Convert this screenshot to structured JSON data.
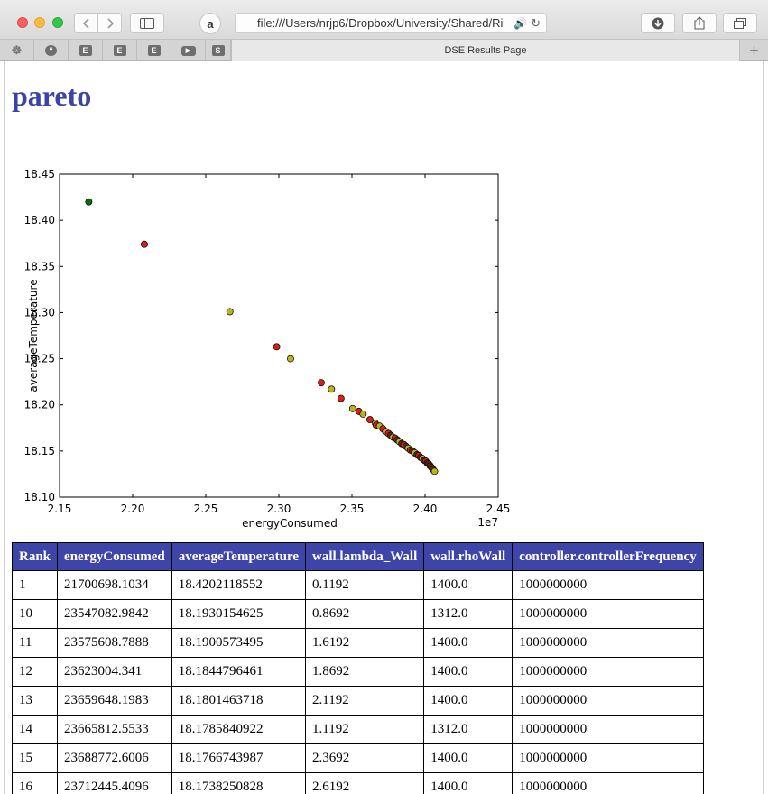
{
  "browser": {
    "url": "file:///Users/nrjp6/Dropbox/University/Shared/Ri",
    "tab_title": "DSE Results Page",
    "favorites": [
      "ghost-icon",
      "chat-icon",
      "E",
      "E",
      "E",
      "youtube-icon",
      "S"
    ]
  },
  "page": {
    "title": "pareto"
  },
  "chart_data": {
    "type": "scatter",
    "xlabel": "energyConsumed",
    "ylabel": "averageTemperature",
    "x_offset_label": "1e7",
    "xlim": [
      2.15,
      2.45
    ],
    "ylim": [
      18.1,
      18.45
    ],
    "x_ticks": [
      "2.15",
      "2.20",
      "2.25",
      "2.30",
      "2.35",
      "2.40",
      "2.45"
    ],
    "y_ticks": [
      "18.10",
      "18.15",
      "18.20",
      "18.25",
      "18.30",
      "18.35",
      "18.40",
      "18.45"
    ],
    "colors": {
      "green": "#0c6b0c",
      "red": "#d81e16",
      "olive": "#b8b51c",
      "dark": "#5a2a14"
    },
    "points": [
      {
        "x": 2.17,
        "y": 18.42,
        "c": "green"
      },
      {
        "x": 2.208,
        "y": 18.374,
        "c": "red"
      },
      {
        "x": 2.2665,
        "y": 18.301,
        "c": "olive"
      },
      {
        "x": 2.2985,
        "y": 18.263,
        "c": "red"
      },
      {
        "x": 2.308,
        "y": 18.25,
        "c": "olive"
      },
      {
        "x": 2.329,
        "y": 18.224,
        "c": "red"
      },
      {
        "x": 2.336,
        "y": 18.217,
        "c": "olive"
      },
      {
        "x": 2.3425,
        "y": 18.207,
        "c": "red"
      },
      {
        "x": 2.3505,
        "y": 18.196,
        "c": "olive"
      },
      {
        "x": 2.3547,
        "y": 18.193,
        "c": "red"
      },
      {
        "x": 2.3576,
        "y": 18.19,
        "c": "olive"
      },
      {
        "x": 2.3623,
        "y": 18.184,
        "c": "red"
      },
      {
        "x": 2.366,
        "y": 18.18,
        "c": "olive"
      },
      {
        "x": 2.3666,
        "y": 18.178,
        "c": "red"
      },
      {
        "x": 2.3689,
        "y": 18.177,
        "c": "olive"
      },
      {
        "x": 2.3712,
        "y": 18.174,
        "c": "red"
      },
      {
        "x": 2.373,
        "y": 18.171,
        "c": "olive"
      },
      {
        "x": 2.375,
        "y": 18.169,
        "c": "red"
      },
      {
        "x": 2.3765,
        "y": 18.167,
        "c": "dark"
      },
      {
        "x": 2.378,
        "y": 18.165,
        "c": "olive"
      },
      {
        "x": 2.3795,
        "y": 18.164,
        "c": "red"
      },
      {
        "x": 2.381,
        "y": 18.162,
        "c": "dark"
      },
      {
        "x": 2.3825,
        "y": 18.16,
        "c": "olive"
      },
      {
        "x": 2.384,
        "y": 18.158,
        "c": "dark"
      },
      {
        "x": 2.3855,
        "y": 18.157,
        "c": "red"
      },
      {
        "x": 2.387,
        "y": 18.155,
        "c": "dark"
      },
      {
        "x": 2.3885,
        "y": 18.153,
        "c": "olive"
      },
      {
        "x": 2.39,
        "y": 18.151,
        "c": "red"
      },
      {
        "x": 2.3915,
        "y": 18.15,
        "c": "dark"
      },
      {
        "x": 2.393,
        "y": 18.148,
        "c": "olive"
      },
      {
        "x": 2.3945,
        "y": 18.146,
        "c": "dark"
      },
      {
        "x": 2.3958,
        "y": 18.145,
        "c": "red"
      },
      {
        "x": 2.397,
        "y": 18.143,
        "c": "dark"
      },
      {
        "x": 2.3982,
        "y": 18.142,
        "c": "olive"
      },
      {
        "x": 2.3995,
        "y": 18.14,
        "c": "dark"
      },
      {
        "x": 2.4005,
        "y": 18.139,
        "c": "red"
      },
      {
        "x": 2.4015,
        "y": 18.137,
        "c": "dark"
      },
      {
        "x": 2.4025,
        "y": 18.136,
        "c": "dark"
      },
      {
        "x": 2.4035,
        "y": 18.134,
        "c": "dark"
      },
      {
        "x": 2.4045,
        "y": 18.132,
        "c": "dark"
      },
      {
        "x": 2.4055,
        "y": 18.13,
        "c": "dark"
      },
      {
        "x": 2.4065,
        "y": 18.128,
        "c": "olive"
      }
    ]
  },
  "table": {
    "headers": [
      "Rank",
      "energyConsumed",
      "averageTemperature",
      "wall.lambda_Wall",
      "wall.rhoWall",
      "controller.controllerFrequency"
    ],
    "rows": [
      [
        "1",
        "21700698.1034",
        "18.4202118552",
        "0.1192",
        "1400.0",
        "1000000000"
      ],
      [
        "10",
        "23547082.9842",
        "18.1930154625",
        "0.8692",
        "1312.0",
        "1000000000"
      ],
      [
        "11",
        "23575608.7888",
        "18.1900573495",
        "1.6192",
        "1400.0",
        "1000000000"
      ],
      [
        "12",
        "23623004.341",
        "18.1844796461",
        "1.8692",
        "1400.0",
        "1000000000"
      ],
      [
        "13",
        "23659648.1983",
        "18.1801463718",
        "2.1192",
        "1400.0",
        "1000000000"
      ],
      [
        "14",
        "23665812.5533",
        "18.1785840922",
        "1.1192",
        "1312.0",
        "1000000000"
      ],
      [
        "15",
        "23688772.6006",
        "18.1766743987",
        "2.3692",
        "1400.0",
        "1000000000"
      ],
      [
        "16",
        "23712445.4096",
        "18.1738250828",
        "2.6192",
        "1400.0",
        "1000000000"
      ]
    ]
  }
}
